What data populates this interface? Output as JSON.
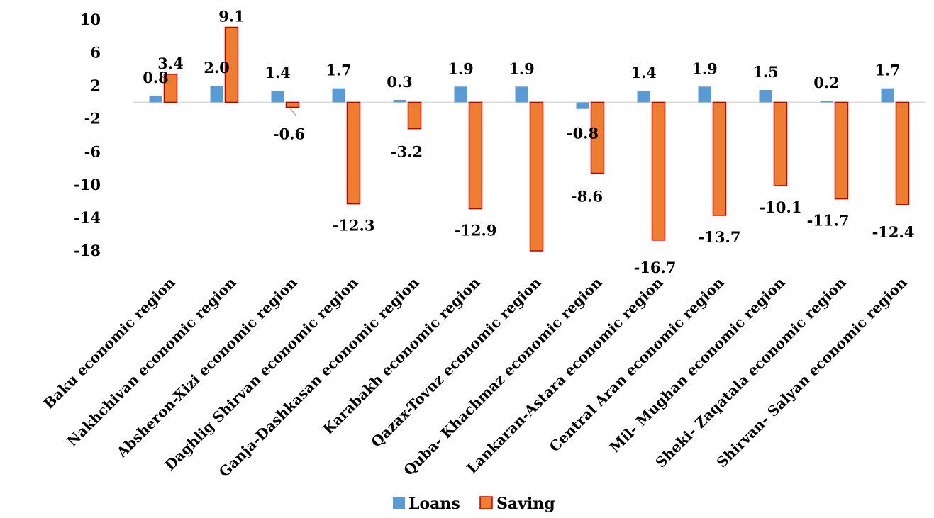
{
  "chart_data": {
    "type": "bar",
    "title": "",
    "xlabel": "",
    "ylabel": "",
    "ylim": [
      -18,
      10
    ],
    "yticks": [
      10,
      6,
      2,
      -2,
      -6,
      -10,
      -14,
      -18
    ],
    "categories": [
      "Baku economic region",
      "Nakhchivan economic region",
      "Absheron-Xizi economic region",
      "Daghlig Shirvan economic region",
      "Ganja-Dashkasan economic region",
      "Karabakh economic region",
      "Qazax-Tovuz economic region",
      "Quba- Khachmaz economic region",
      "Lankaran-Astara economic region",
      "Central Aran economic region",
      "Mil- Mughan economic region",
      "Sheki- Zaqatala economic region",
      "Shirvan- Salyan economic region"
    ],
    "series": [
      {
        "name": "Loans",
        "color": "#5B9BD5",
        "values": [
          0.8,
          2.0,
          1.4,
          1.7,
          0.3,
          1.9,
          1.9,
          -0.8,
          1.4,
          1.9,
          1.5,
          0.2,
          1.7
        ],
        "labels": [
          "0.8",
          "2.0",
          "1.4",
          "1.7",
          "0.3",
          "1.9",
          "1.9",
          "-0.8",
          "1.4",
          "1.9",
          "1.5",
          "0.2",
          "1.7"
        ]
      },
      {
        "name": "Saving",
        "color": "#ED7D31",
        "border": "#C00000",
        "values": [
          3.4,
          9.1,
          -0.6,
          -12.3,
          -3.2,
          -12.9,
          -18,
          -8.6,
          -16.7,
          -13.7,
          -10.1,
          -11.7,
          -12.4
        ],
        "labels": [
          "3.4",
          "9.1",
          "-0.6",
          "-12.3",
          "-3.2",
          "-12.9",
          "",
          "-8.6",
          "-16.7",
          "-13.7",
          "-10.1",
          "-11.7",
          "-12.4"
        ]
      }
    ],
    "grid": false,
    "legend": "bottom"
  }
}
